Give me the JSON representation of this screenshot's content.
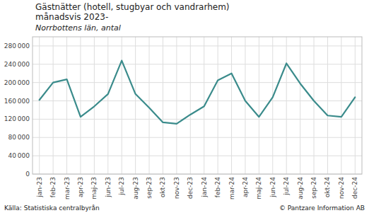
{
  "chart_data": {
    "type": "line",
    "title": [
      "Gästnätter (hotell, stugbyar och vandrarhem)",
      "månadsvis 2023-"
    ],
    "subtitle": "Norrbottens län, antal",
    "categories": [
      "jan-23",
      "feb-23",
      "mar-23",
      "apr-23",
      "maj-23",
      "jun-23",
      "jul-23",
      "aug-23",
      "sep-23",
      "okt-23",
      "nov-23",
      "dec-23",
      "jan-24",
      "feb-24",
      "mar-24",
      "apr-24",
      "maj-24",
      "jun-24",
      "jul-24",
      "aug-24",
      "sep-24",
      "okt-24",
      "nov-24",
      "dec-24"
    ],
    "values": [
      162000,
      200000,
      207000,
      125000,
      148000,
      175000,
      248000,
      175000,
      145000,
      113000,
      110000,
      130000,
      148000,
      205000,
      220000,
      160000,
      125000,
      168000,
      242000,
      198000,
      160000,
      128000,
      125000,
      168000
    ],
    "color": "#3a8b8b",
    "ylim": [
      0,
      300000
    ],
    "yticks": [
      0,
      {
        "value": 40000,
        "label": "40 000"
      },
      {
        "value": 80000,
        "label": "80 000"
      },
      {
        "value": 120000,
        "label": "120 000"
      },
      {
        "value": 160000,
        "label": "160 000"
      },
      {
        "value": 200000,
        "label": "200 000"
      },
      {
        "value": 240000,
        "label": "240 000"
      },
      {
        "value": 280000,
        "label": "280 000"
      }
    ],
    "grid": true,
    "annotations": [
      "Källa: Statistiska centralbyrån",
      "© Pantzare Information AB"
    ]
  }
}
